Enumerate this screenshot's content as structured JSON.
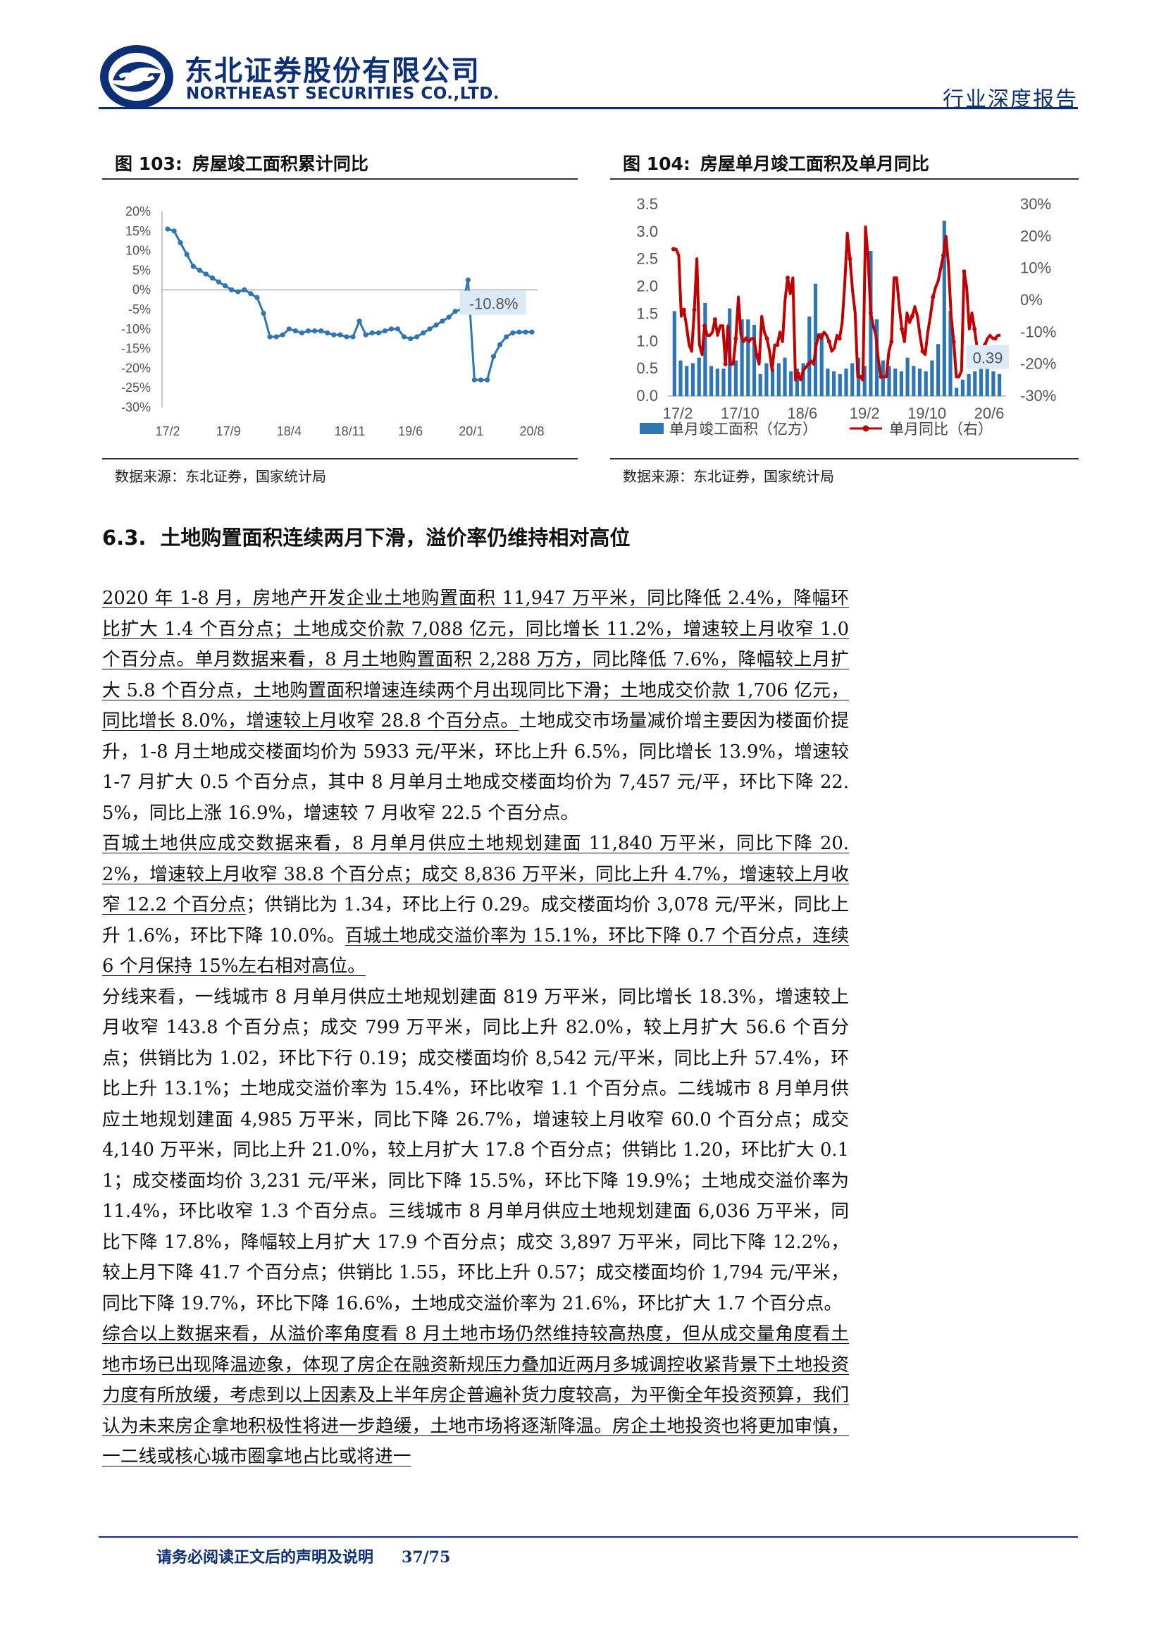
{
  "header": {
    "company_cn": "东北证券股份有限公司",
    "company_en": "NORTHEAST SECURITIES CO.,LTD.",
    "report_type": "行业深度报告",
    "brand_color": "#0d2f75"
  },
  "figures": [
    {
      "number": "图 103:",
      "title": "房屋竣工面积累计同比",
      "source": "数据来源：东北证券，国家统计局"
    },
    {
      "number": "图 104:",
      "title": "房屋单月竣工面积及单月同比",
      "source": "数据来源：东北证券，国家统计局"
    }
  ],
  "chart_data": [
    {
      "type": "line",
      "title": "",
      "color": "#2e75b6",
      "x_tick_labels": [
        "17/2",
        "17/9",
        "18/4",
        "18/11",
        "19/6",
        "20/1",
        "20/8"
      ],
      "y_tick_labels": [
        "20%",
        "15%",
        "10%",
        "5%",
        "0%",
        "-5%",
        "-10%",
        "-15%",
        "-20%",
        "-25%",
        "-30%"
      ],
      "ylim": [
        -30,
        20
      ],
      "values": [
        15.5,
        15,
        12,
        9,
        6,
        5,
        4,
        3,
        2,
        1,
        0,
        -0.5,
        0,
        -1,
        -2,
        -6,
        -12,
        -12,
        -11.5,
        -10,
        -10.5,
        -11,
        -10.5,
        -10.5,
        -10.5,
        -11,
        -11.5,
        -11.5,
        -12,
        -12,
        -8,
        -11.5,
        -11,
        -11,
        -10.5,
        -10,
        -10,
        -12,
        -12.5,
        -12,
        -11,
        -10,
        -9,
        -8,
        -7,
        -5.5,
        -5,
        2.5,
        -23,
        -23,
        -23,
        -17,
        -14,
        -12,
        -11,
        -10.8,
        -10.8,
        -10.8
      ],
      "annotation": "-10.8%",
      "grid": false
    },
    {
      "type": "bar+line",
      "title": "",
      "x_tick_labels": [
        "17/2",
        "17/10",
        "18/6",
        "19/2",
        "19/10",
        "20/6"
      ],
      "y_left_tick_labels": [
        "3.5",
        "3.0",
        "2.5",
        "2.0",
        "1.5",
        "1.0",
        "0.5",
        "0.0"
      ],
      "y_right_tick_labels": [
        "30%",
        "20%",
        "10%",
        "0%",
        "-10%",
        "-20%",
        "-30%"
      ],
      "ylim_left": [
        0,
        3.5
      ],
      "ylim_right": [
        -30,
        30
      ],
      "series": [
        {
          "name": "单月竣工面积（亿方）",
          "type": "bar",
          "axis": "left",
          "color": "#2e75b6",
          "values": [
            1.55,
            0.65,
            0.55,
            0.6,
            0.7,
            1.7,
            0.55,
            0.5,
            0.5,
            1.6,
            0.65,
            1.4,
            1.4,
            1.3,
            0.4,
            0.6,
            0.5,
            0.6,
            0.7,
            0.45,
            0.5,
            0.6,
            1.45,
            2.05,
            1.15,
            0.5,
            0.45,
            0.4,
            0.5,
            0.6,
            0.7,
            0.55,
            2.65,
            1.4,
            0.65,
            0.55,
            0.5,
            0.45,
            0.7,
            0.55,
            0.5,
            0.45,
            0.65,
            0.95,
            3.2,
            1.55,
            0.15,
            0.3,
            0.4,
            0.45,
            0.5,
            0.6,
            0.45,
            0.4
          ]
        },
        {
          "name": "单月同比（右）",
          "type": "line",
          "axis": "right",
          "color": "#c00000",
          "values": [
            16,
            16,
            14,
            -5,
            -3,
            -8,
            -14,
            -16,
            -3,
            13,
            -14,
            -17,
            -8,
            -11,
            -11,
            -10,
            -6,
            -11,
            -8,
            -8,
            -20,
            -8,
            -20,
            -20,
            -12,
            1,
            -11,
            -13,
            -12,
            -13,
            -12,
            -12,
            -17,
            -20,
            -5,
            -10,
            -12,
            -16,
            -22,
            -14,
            -14,
            -10,
            -13,
            0,
            7,
            2,
            7,
            -25,
            -23,
            -25,
            -22,
            -21,
            -20,
            -19,
            -20,
            -14,
            -11,
            -12,
            -10,
            -11,
            -13,
            -16,
            -15,
            -11,
            -12,
            -7,
            5,
            21,
            13,
            3,
            -4,
            -24,
            -24,
            -25,
            23,
            13,
            -4,
            -8,
            -11,
            -19,
            -24,
            -24,
            -24,
            -16,
            -13,
            7,
            7,
            -2,
            -9,
            -13,
            -4,
            -7,
            -5,
            -2,
            -5,
            -11,
            -16,
            -17,
            -10,
            -5,
            1,
            4,
            6,
            10,
            14,
            20,
            11,
            -5,
            -13,
            -24,
            -24,
            -22,
            9,
            4,
            -9,
            -4,
            -9,
            -15,
            -18,
            -17,
            -14,
            -12,
            -11,
            -12,
            -12,
            -11,
            -11
          ]
        }
      ],
      "legend_position": "bottom",
      "annotation": "0.39",
      "grid": false
    }
  ],
  "section": {
    "number": "6.3.",
    "title": "土地购置面积连续两月下滑，溢价率仍维持相对高位"
  },
  "paragraphs": [
    {
      "underlined": "2020 年 1-8 月，房地产开发企业土地购置面积 11,947 万平米，同比降低 2.4%，降幅环比扩大 1.4 个百分点；土地成交价款 7,088 亿元，同比增长 11.2%，增速较上月收窄 1.0 个百分点。单月数据来看，8 月土地购置面积 2,288 万方，同比降低 7.6%，降幅较上月扩大 5.8 个百分点，土地购置面积增速连续两个月出现同比下滑；土地成交价款 1,706 亿元，同比增长 8.0%，增速较上月收窄 28.8 个百分点。",
      "normal": "土地成交市场量减价增主要因为楼面价提升，1-8 月土地成交楼面均价为 5933 元/平米，环比上升 6.5%，同比增长 13.9%，增速较 1-7 月扩大 0.5 个百分点，其中 8 月单月土地成交楼面均价为 7,457 元/平，环比下降 22.5%，同比上涨 16.9%，增速较 7 月收窄 22.5 个百分点。",
      "underlined_tail": ""
    },
    {
      "underlined": "百城土地供应成交数据来看，8 月单月供应土地规划建面 11,840 万平米，同比下降 20.2%，增速较上月收窄 38.8 个百分点；成交 8,836 万平米，同比上升 4.7%，增速较上月收窄 12.2 个百分点",
      "normal": "；供销比为 1.34，环比上行 0.29。成交楼面均价 3,078 元/平米，同比上升 1.6%，环比下降 10.0%。",
      "underlined_tail": "百城土地成交溢价率为 15.1%，环比下降 0.7 个百分点，连续 6 个月保持 15%左右相对高位。"
    },
    {
      "underlined": "",
      "normal": "分线来看，一线城市 8 月单月供应土地规划建面 819 万平米，同比增长 18.3%，增速较上月收窄 143.8 个百分点；成交 799 万平米，同比上升 82.0%，较上月扩大 56.6 个百分点；供销比为 1.02，环比下行 0.19；成交楼面均价 8,542 元/平米，同比上升 57.4%，环比上升 13.1%；土地成交溢价率为 15.4%，环比收窄 1.1 个百分点。二线城市 8 月单月供应土地规划建面 4,985 万平米，同比下降 26.7%，增速较上月收窄 60.0 个百分点；成交 4,140 万平米，同比上升 21.0%，较上月扩大 17.8 个百分点；供销比 1.20，环比扩大 0.11；成交楼面均价 3,231 元/平米，同比下降 15.5%，环比下降 19.9%；土地成交溢价率为 11.4%，环比收窄 1.3 个百分点。三线城市 8 月单月供应土地规划建面 6,036 万平米，同比下降 17.8%，降幅较上月扩大 17.9 个百分点；成交 3,897 万平米，同比下降 12.2%，较上月下降 41.7 个百分点；供销比 1.55，环比上升 0.57；成交楼面均价 1,794 元/平米，同比下降 19.7%，环比下降 16.6%，土地成交溢价率为 21.6%，环比扩大 1.7 个百分点。",
      "underlined_tail": ""
    },
    {
      "underlined": "综合以上数据来看，从溢价率角度看 8 月土地市场仍然维持较高热度，但从成交量角度看土地市场已出现降温迹象，体现了房企在融资新规压力叠加近两月多城调控收紧背景下土地投资力度有所放缓，考虑到以上因素及上半年房企普遍补货力度较高，为平衡全年投资预算，我们认为未来房企拿地积极性将进一步趋缓，土地市场将逐渐降温。房企土地投资也将更加审慎，一二线或核心城市圈拿地占比或将进一",
      "normal": "",
      "underlined_tail": ""
    }
  ],
  "footer": {
    "disclaimer": "请务必阅读正文后的声明及说明",
    "page": "37/75"
  }
}
